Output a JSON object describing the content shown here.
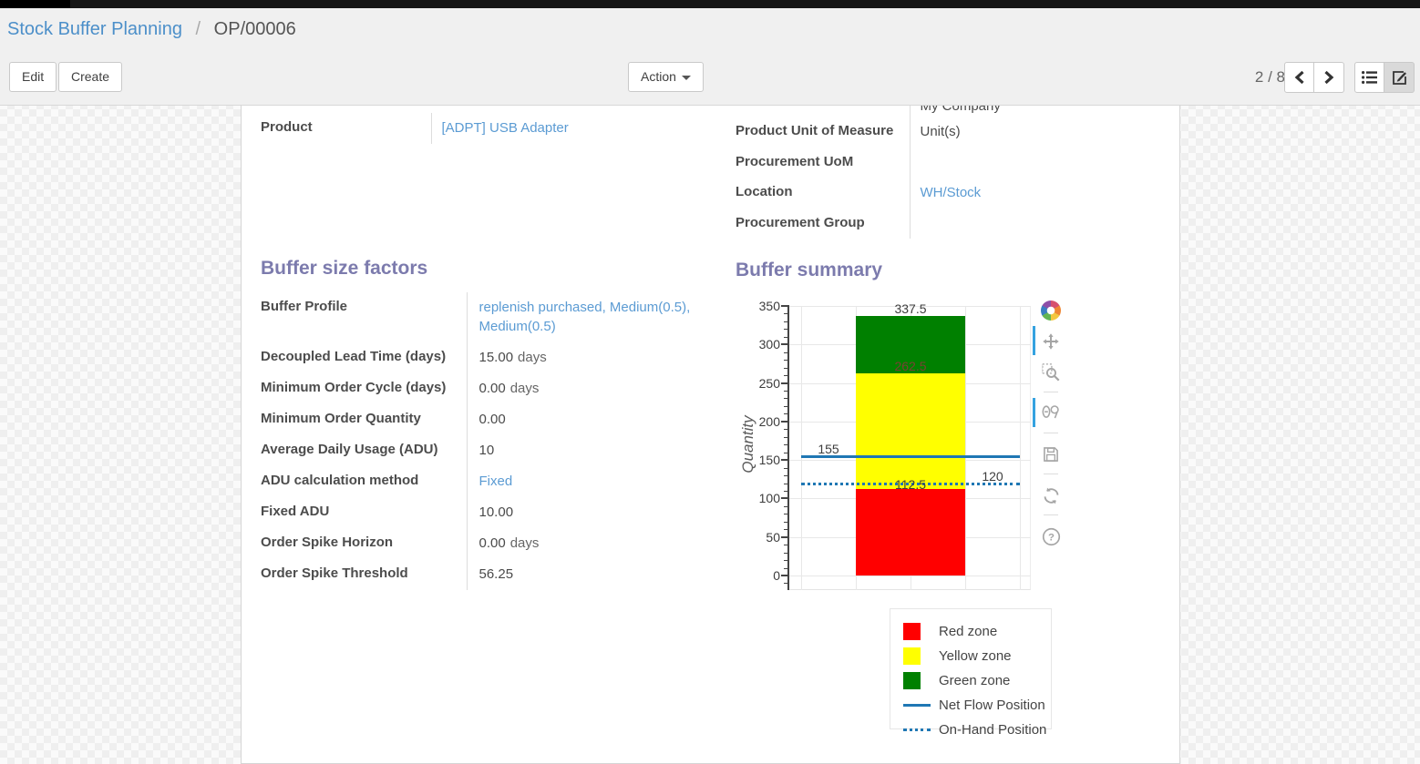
{
  "breadcrumb": {
    "parent": "Stock Buffer Planning",
    "separator": "/",
    "current": "OP/00006"
  },
  "toolbar": {
    "edit_label": "Edit",
    "create_label": "Create",
    "action_label": "Action",
    "pager_count": "2 / 8",
    "view_switcher_icons": [
      "list-view-icon",
      "form-view-icon"
    ],
    "active_view": "form"
  },
  "form": {
    "clipped_value": "My Company",
    "product_group": [
      {
        "label": "Product",
        "value": "[ADPT] USB Adapter",
        "link": true
      }
    ],
    "details_group": [
      {
        "label": "Product Unit of Measure",
        "value": "Unit(s)",
        "link": false
      },
      {
        "label": "Procurement UoM",
        "value": "",
        "link": false
      },
      {
        "label": "Location",
        "value": "WH/Stock",
        "link": true
      },
      {
        "label": "Procurement Group",
        "value": "",
        "link": false
      }
    ],
    "factors_title": "Buffer size factors",
    "summary_title": "Buffer summary",
    "factors_group": [
      {
        "label": "Buffer Profile",
        "value": "replenish purchased, Medium(0.5), Medium(0.5)",
        "link": true
      },
      {
        "label": "Decoupled Lead Time (days)",
        "value": "15.00",
        "suffix": "days"
      },
      {
        "label": "Minimum Order Cycle (days)",
        "value": "0.00",
        "suffix": "days"
      },
      {
        "label": "Minimum Order Quantity",
        "value": "0.00"
      },
      {
        "label": "Average Daily Usage (ADU)",
        "value": "10"
      },
      {
        "label": "ADU calculation method",
        "value": "Fixed",
        "link": true
      },
      {
        "label": "Fixed ADU",
        "value": "10.00"
      },
      {
        "label": "Order Spike Horizon",
        "value": "0.00",
        "suffix": "days"
      },
      {
        "label": "Order Spike Threshold",
        "value": "56.25"
      }
    ]
  },
  "chart_data": {
    "type": "bar",
    "title": "Buffer summary",
    "ylabel": "Quantity",
    "ylim": [
      0,
      350
    ],
    "yticks": [
      0,
      50,
      100,
      150,
      200,
      250,
      300,
      350
    ],
    "minor_tick_step": 10,
    "grid": true,
    "legend_position": "bottom-right",
    "series": [
      {
        "name": "Red zone",
        "kind": "zone",
        "color": "#ff0000",
        "from": 0,
        "to": 112.5
      },
      {
        "name": "Yellow zone",
        "kind": "zone",
        "color": "#ffff00",
        "from": 112.5,
        "to": 262.5
      },
      {
        "name": "Green zone",
        "kind": "zone",
        "color": "#008000",
        "from": 262.5,
        "to": 337.5
      },
      {
        "name": "Net Flow Position",
        "kind": "line",
        "style": "solid",
        "color": "#1f77b4",
        "value": 155
      },
      {
        "name": "On-Hand Position",
        "kind": "line",
        "style": "dotted",
        "color": "#1f77b4",
        "value": 120
      }
    ],
    "annotations": [
      {
        "text": "337.5",
        "value": 337.5,
        "x": 133,
        "dy": -16,
        "color": "#3d3d3d"
      },
      {
        "text": "262.5",
        "value": 262.5,
        "x": 133,
        "dy": -16,
        "color": "#7a4034"
      },
      {
        "text": "155",
        "value": 155,
        "x": 43,
        "dy": -16,
        "color": "#3d3d3d"
      },
      {
        "text": "112.5",
        "value": 112.5,
        "x": 133,
        "dy": -13,
        "color": "#3d3d3d"
      },
      {
        "text": "120",
        "value": 120,
        "x": 223,
        "dy": -16,
        "color": "#3d3d3d"
      }
    ],
    "modebar_icons": [
      "plotly-logo",
      "pan",
      "box-zoom",
      "compare-data-on-hover",
      "download-plot",
      "reset-axes",
      "help"
    ]
  },
  "colors": {
    "breadcrumb_link": "#4c8fc9",
    "field_link": "#5b9bd3",
    "section_heading": "#7c7bad",
    "net_flow_line": "#1f77b4",
    "modebar_active": "#35a2e0"
  }
}
